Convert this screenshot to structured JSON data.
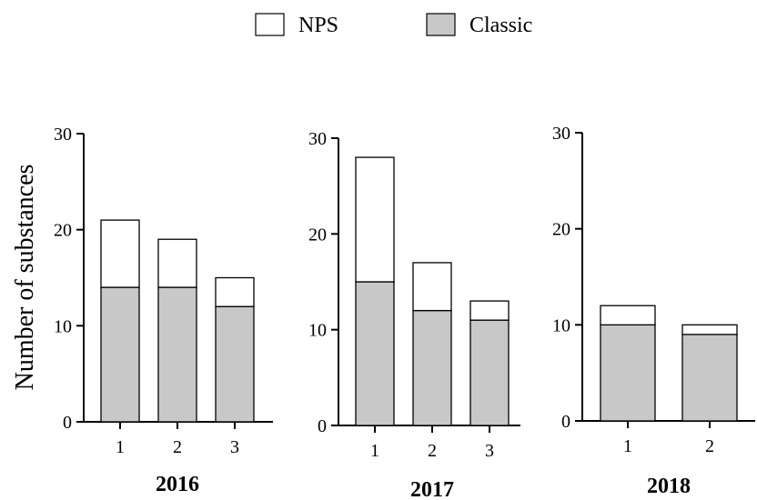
{
  "legend": {
    "entries": [
      {
        "name": "NPS",
        "color": "#ffffff"
      },
      {
        "name": "Classic",
        "color": "#c8c8c8"
      }
    ]
  },
  "chart_data": [
    {
      "type": "bar",
      "stacked": true,
      "title": "2016",
      "ylabel": "Number of substances",
      "categories": [
        "1",
        "2",
        "3"
      ],
      "series": [
        {
          "name": "Classic",
          "values": [
            14,
            14,
            12
          ]
        },
        {
          "name": "NPS",
          "values": [
            7,
            5,
            3
          ]
        }
      ],
      "ylim": [
        0,
        30
      ],
      "yticks": [
        0,
        10,
        20,
        30
      ]
    },
    {
      "type": "bar",
      "stacked": true,
      "title": "2017",
      "categories": [
        "1",
        "2",
        "3"
      ],
      "series": [
        {
          "name": "Classic",
          "values": [
            15,
            12,
            11
          ]
        },
        {
          "name": "NPS",
          "values": [
            13,
            5,
            2
          ]
        }
      ],
      "ylim": [
        0,
        30
      ],
      "yticks": [
        0,
        10,
        20,
        30
      ]
    },
    {
      "type": "bar",
      "stacked": true,
      "title": "2018",
      "categories": [
        "1",
        "2"
      ],
      "series": [
        {
          "name": "Classic",
          "values": [
            10,
            9
          ]
        },
        {
          "name": "NPS",
          "values": [
            2,
            1
          ]
        }
      ],
      "ylim": [
        0,
        30
      ],
      "yticks": [
        0,
        10,
        20,
        30
      ]
    }
  ]
}
